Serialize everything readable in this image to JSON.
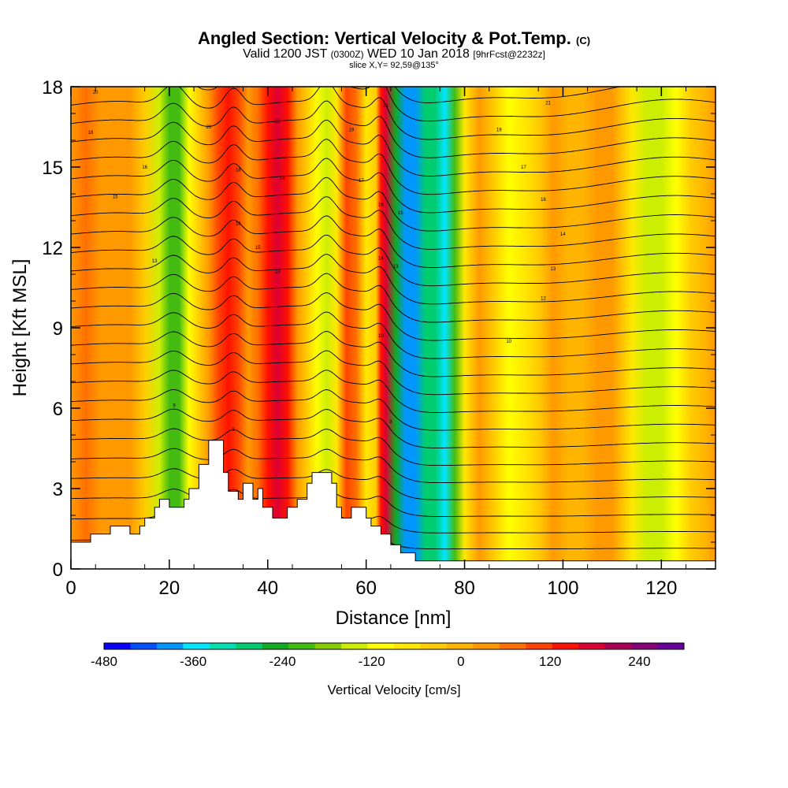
{
  "header": {
    "title": "Angled Section: Vertical Velocity & Pot.Temp.",
    "title_mark": "(C)",
    "valid_prefix": "Valid 1200 JST",
    "valid_utc": "(0300Z)",
    "valid_date": "WED 10 Jan 2018",
    "forecast": "[9hrFcst@2232z]",
    "slice": "slice X,Y= 92,59@135°"
  },
  "chart_data": {
    "type": "heatmap",
    "xlabel": "Distance [nm]",
    "ylabel": "Height [Kft MSL]",
    "xlim": [
      0,
      131
    ],
    "ylim": [
      0,
      18
    ],
    "x_ticks": [
      0,
      20,
      40,
      60,
      80,
      100,
      120
    ],
    "y_ticks": [
      0,
      3,
      6,
      9,
      12,
      15,
      18
    ],
    "colorbar": {
      "label": "Vertical Velocity [cm/s]",
      "range": [
        -480,
        300
      ],
      "tick_values": [
        -480,
        -360,
        -240,
        -120,
        0,
        120,
        240
      ],
      "colors": [
        "#0a00ff",
        "#0050ff",
        "#0096ff",
        "#00e6ff",
        "#00e0b0",
        "#00cc70",
        "#11aa22",
        "#44bb11",
        "#88cc00",
        "#ccee00",
        "#ffff00",
        "#ffe800",
        "#ffcc00",
        "#ffb400",
        "#ff9900",
        "#ff7000",
        "#ff4400",
        "#ff1100",
        "#dd0033",
        "#aa0055",
        "#880077",
        "#660099"
      ]
    },
    "columns": [
      {
        "x": 0,
        "w": 50
      },
      {
        "x": 3,
        "w": 60
      },
      {
        "x": 6,
        "w": 40
      },
      {
        "x": 9,
        "w": 45
      },
      {
        "x": 12,
        "w": 30
      },
      {
        "x": 15,
        "w": -40
      },
      {
        "x": 18,
        "w": -150
      },
      {
        "x": 20,
        "w": -230
      },
      {
        "x": 22,
        "w": -200
      },
      {
        "x": 24,
        "w": -120
      },
      {
        "x": 26,
        "w": -40
      },
      {
        "x": 28,
        "w": 40
      },
      {
        "x": 30,
        "w": 100
      },
      {
        "x": 32,
        "w": 150
      },
      {
        "x": 34,
        "w": 110
      },
      {
        "x": 36,
        "w": 40
      },
      {
        "x": 38,
        "w": 80
      },
      {
        "x": 40,
        "w": 150
      },
      {
        "x": 42,
        "w": 190
      },
      {
        "x": 44,
        "w": 130
      },
      {
        "x": 46,
        "w": 30
      },
      {
        "x": 48,
        "w": -40
      },
      {
        "x": 50,
        "w": -110
      },
      {
        "x": 52,
        "w": -150
      },
      {
        "x": 54,
        "w": -90
      },
      {
        "x": 56,
        "w": 120
      },
      {
        "x": 58,
        "w": 60
      },
      {
        "x": 60,
        "w": -60
      },
      {
        "x": 62,
        "w": -20
      },
      {
        "x": 63,
        "w": 150
      },
      {
        "x": 64,
        "w": 180
      },
      {
        "x": 66,
        "w": -250
      },
      {
        "x": 68,
        "w": -380
      },
      {
        "x": 70,
        "w": -400
      },
      {
        "x": 72,
        "w": -280
      },
      {
        "x": 74,
        "w": -270
      },
      {
        "x": 76,
        "w": -340
      },
      {
        "x": 78,
        "w": -200
      },
      {
        "x": 80,
        "w": -60
      },
      {
        "x": 83,
        "w": 30
      },
      {
        "x": 86,
        "w": -30
      },
      {
        "x": 89,
        "w": -110
      },
      {
        "x": 92,
        "w": -70
      },
      {
        "x": 95,
        "w": -20
      },
      {
        "x": 98,
        "w": 20
      },
      {
        "x": 101,
        "w": -10
      },
      {
        "x": 104,
        "w": 10
      },
      {
        "x": 107,
        "w": 20
      },
      {
        "x": 110,
        "w": 30
      },
      {
        "x": 114,
        "w": -60
      },
      {
        "x": 117,
        "w": -140
      },
      {
        "x": 120,
        "w": -160
      },
      {
        "x": 123,
        "w": -100
      },
      {
        "x": 126,
        "w": -40
      },
      {
        "x": 129,
        "w": 10
      },
      {
        "x": 131,
        "w": 20
      }
    ],
    "terrain": [
      [
        0,
        1.0
      ],
      [
        4,
        1.0
      ],
      [
        4,
        1.3
      ],
      [
        8,
        1.3
      ],
      [
        8,
        1.6
      ],
      [
        12,
        1.6
      ],
      [
        12,
        1.3
      ],
      [
        14,
        1.3
      ],
      [
        14,
        1.6
      ],
      [
        15,
        1.6
      ],
      [
        15,
        1.9
      ],
      [
        17,
        1.9
      ],
      [
        17,
        2.3
      ],
      [
        18,
        2.3
      ],
      [
        18,
        2.6
      ],
      [
        20,
        2.6
      ],
      [
        20,
        2.3
      ],
      [
        23,
        2.3
      ],
      [
        23,
        2.6
      ],
      [
        24,
        2.6
      ],
      [
        24,
        3.0
      ],
      [
        26,
        3.0
      ],
      [
        26,
        3.9
      ],
      [
        28,
        3.9
      ],
      [
        28,
        4.8
      ],
      [
        31,
        4.8
      ],
      [
        31,
        3.6
      ],
      [
        32,
        3.6
      ],
      [
        32,
        2.9
      ],
      [
        34,
        2.9
      ],
      [
        34,
        2.6
      ],
      [
        35,
        2.6
      ],
      [
        35,
        3.2
      ],
      [
        37,
        3.2
      ],
      [
        37,
        2.6
      ],
      [
        38,
        2.6
      ],
      [
        38,
        3.0
      ],
      [
        39,
        3.0
      ],
      [
        39,
        2.3
      ],
      [
        41,
        2.3
      ],
      [
        41,
        1.9
      ],
      [
        44,
        1.9
      ],
      [
        44,
        2.3
      ],
      [
        46,
        2.3
      ],
      [
        46,
        2.6
      ],
      [
        48,
        2.6
      ],
      [
        48,
        3.2
      ],
      [
        49,
        3.2
      ],
      [
        49,
        3.6
      ],
      [
        53,
        3.6
      ],
      [
        53,
        3.2
      ],
      [
        54,
        3.2
      ],
      [
        54,
        2.3
      ],
      [
        55,
        2.3
      ],
      [
        55,
        1.9
      ],
      [
        57,
        1.9
      ],
      [
        57,
        2.3
      ],
      [
        60,
        2.3
      ],
      [
        60,
        1.9
      ],
      [
        61,
        1.9
      ],
      [
        61,
        1.6
      ],
      [
        63,
        1.6
      ],
      [
        63,
        1.3
      ],
      [
        65,
        1.3
      ],
      [
        65,
        0.9
      ],
      [
        67,
        0.9
      ],
      [
        67,
        0.6
      ],
      [
        70,
        0.6
      ],
      [
        70,
        0.3
      ],
      [
        131,
        0.3
      ]
    ],
    "contour_labels": [
      {
        "x": 5,
        "y": 17.8,
        "text": "20"
      },
      {
        "x": 4,
        "y": 16.3,
        "text": "18"
      },
      {
        "x": 15,
        "y": 15.0,
        "text": "16"
      },
      {
        "x": 9,
        "y": 13.9,
        "text": "15"
      },
      {
        "x": 17,
        "y": 11.5,
        "text": "13"
      },
      {
        "x": 21,
        "y": 6.1,
        "text": "9"
      },
      {
        "x": 28,
        "y": 16.5,
        "text": "20"
      },
      {
        "x": 34,
        "y": 14.9,
        "text": "18"
      },
      {
        "x": 34,
        "y": 12.9,
        "text": "16"
      },
      {
        "x": 38,
        "y": 12.0,
        "text": "15"
      },
      {
        "x": 42,
        "y": 11.1,
        "text": "13"
      },
      {
        "x": 42,
        "y": 16.7,
        "text": "20"
      },
      {
        "x": 43,
        "y": 14.6,
        "text": "18"
      },
      {
        "x": 33,
        "y": 5.2,
        "text": "8"
      },
      {
        "x": 57,
        "y": 16.4,
        "text": "19"
      },
      {
        "x": 59,
        "y": 14.5,
        "text": "17"
      },
      {
        "x": 64,
        "y": 17.3,
        "text": "21"
      },
      {
        "x": 63,
        "y": 13.6,
        "text": "16"
      },
      {
        "x": 67,
        "y": 13.3,
        "text": "15"
      },
      {
        "x": 63,
        "y": 11.6,
        "text": "14"
      },
      {
        "x": 66,
        "y": 11.3,
        "text": "13"
      },
      {
        "x": 63,
        "y": 8.7,
        "text": "10"
      },
      {
        "x": 65,
        "y": 5.5,
        "text": "9"
      },
      {
        "x": 97,
        "y": 17.4,
        "text": "21"
      },
      {
        "x": 87,
        "y": 16.4,
        "text": "19"
      },
      {
        "x": 92,
        "y": 15.0,
        "text": "17"
      },
      {
        "x": 96,
        "y": 13.8,
        "text": "16"
      },
      {
        "x": 100,
        "y": 12.5,
        "text": "14"
      },
      {
        "x": 98,
        "y": 11.2,
        "text": "13"
      },
      {
        "x": 96,
        "y": 10.1,
        "text": "12"
      },
      {
        "x": 89,
        "y": 8.5,
        "text": "10"
      }
    ]
  }
}
